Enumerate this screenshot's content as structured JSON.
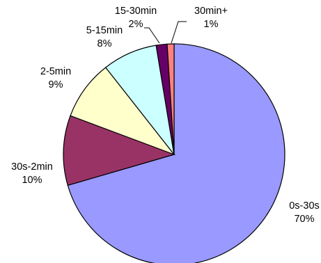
{
  "chart_data": {
    "type": "pie",
    "title": "",
    "start_angle_deg": 0,
    "direction": "clockwise",
    "slices": [
      {
        "label": "0s-30s",
        "percent_label": "70%",
        "value": 70.5,
        "color": "#9999FF"
      },
      {
        "label": "30s-2min",
        "percent_label": "10%",
        "value": 10.2,
        "color": "#993366"
      },
      {
        "label": "2-5min",
        "percent_label": "9%",
        "value": 8.7,
        "color": "#FFFFCC"
      },
      {
        "label": "5-15min",
        "percent_label": "8%",
        "value": 8.0,
        "color": "#CCFFFF"
      },
      {
        "label": "15-30min",
        "percent_label": "2%",
        "value": 1.6,
        "color": "#660066"
      },
      {
        "label": "30min+",
        "percent_label": "1%",
        "value": 1.0,
        "color": "#FF8080"
      }
    ],
    "legend": "none"
  }
}
